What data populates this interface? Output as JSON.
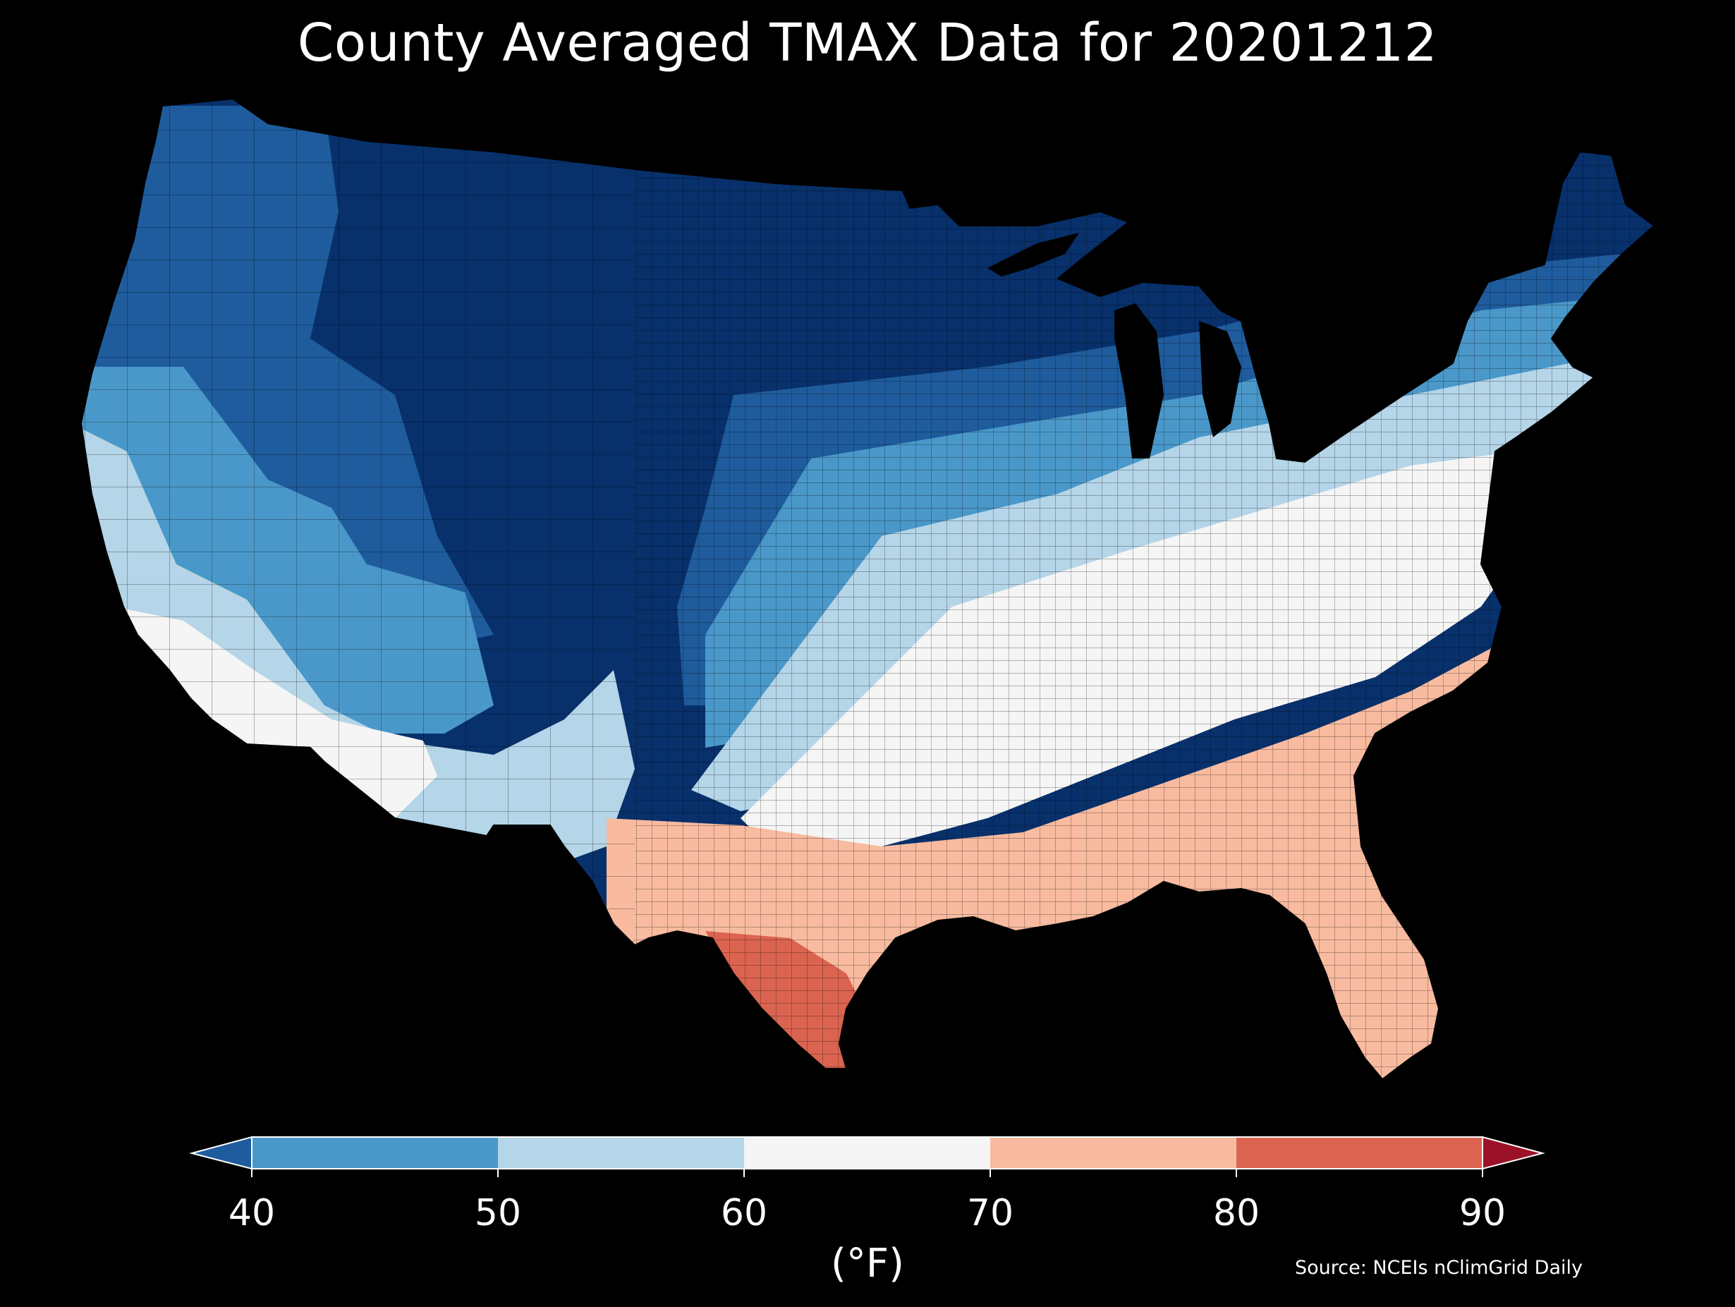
{
  "title": "County Averaged TMAX Data for 20201212",
  "source": "Source: NCEIs nClimGrid Daily",
  "colorbar": {
    "label": "(°F)",
    "ticks": [
      "40",
      "50",
      "60",
      "70",
      "80",
      "90"
    ],
    "bins": [
      {
        "range": [
          40,
          50
        ],
        "color": "#4a98c9"
      },
      {
        "range": [
          50,
          60
        ],
        "color": "#b5d5e8"
      },
      {
        "range": [
          60,
          70
        ],
        "color": "#f5f5f5"
      },
      {
        "range": [
          70,
          80
        ],
        "color": "#f8bba0"
      },
      {
        "range": [
          80,
          90
        ],
        "color": "#db6450"
      }
    ],
    "under_color": "#1f5c9d",
    "over_color": "#9b1128",
    "extend": "both"
  },
  "map": {
    "region": "Contiguous United States",
    "subject": "county averaged daily maximum temperature",
    "background": "#000000",
    "county_borders": true,
    "colors": {
      "coldest": "#08306b",
      "cold": "#1f5c9d",
      "cool": "#4a98c9",
      "mild": "#b5d5e8",
      "neutral": "#f5f5f5",
      "warm": "#f8bba0",
      "hot": "#db6450"
    }
  }
}
